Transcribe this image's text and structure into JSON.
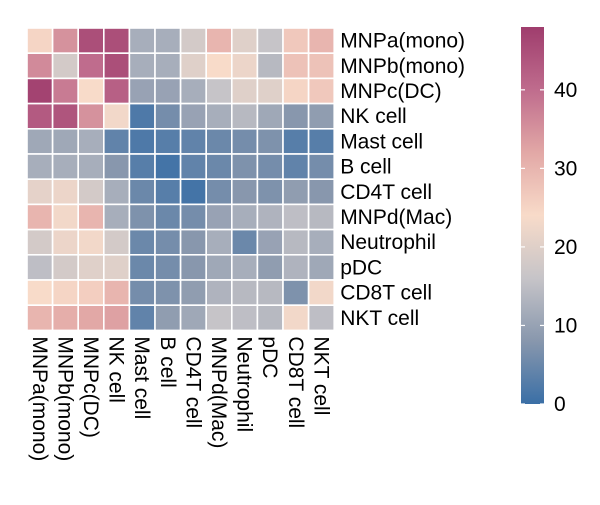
{
  "chart_data": {
    "type": "heatmap",
    "title": "",
    "xlabel": "",
    "ylabel": "",
    "rows": [
      "MNPa(mono)",
      "MNPb(mono)",
      "MNPc(DC)",
      "NK cell",
      "Mast cell",
      "B cell",
      "CD4T cell",
      "MNPd(Mac)",
      "Neutrophil",
      "pDC",
      "CD8T cell",
      "NKT cell"
    ],
    "columns": [
      "MNPa(mono)",
      "MNPb(mono)",
      "MNPc(DC)",
      "NK cell",
      "Mast cell",
      "B cell",
      "CD4T cell",
      "MNPd(Mac)",
      "Neutrophil",
      "pDC",
      "CD8T cell",
      "NKT cell"
    ],
    "values": [
      [
        25,
        35,
        45,
        45,
        12,
        12,
        18,
        30,
        20,
        16,
        27,
        30
      ],
      [
        36,
        18,
        40,
        45,
        12,
        12,
        20,
        24,
        22,
        14,
        28,
        28
      ],
      [
        47,
        38,
        24,
        42,
        10,
        10,
        12,
        16,
        20,
        20,
        25,
        27
      ],
      [
        43,
        44,
        35,
        23,
        2,
        6,
        10,
        12,
        14,
        11,
        8,
        9
      ],
      [
        11,
        11,
        12,
        4,
        2,
        3,
        4,
        5,
        6,
        7,
        3,
        3
      ],
      [
        12,
        12,
        12,
        8,
        3,
        1,
        4,
        5,
        7,
        6,
        4,
        6
      ],
      [
        21,
        22,
        18,
        12,
        5,
        3,
        1,
        6,
        8,
        7,
        9,
        8
      ],
      [
        30,
        23,
        30,
        12,
        7,
        5,
        6,
        10,
        12,
        13,
        15,
        14
      ],
      [
        18,
        22,
        23,
        18,
        5,
        6,
        8,
        12,
        5,
        10,
        14,
        12
      ],
      [
        15,
        18,
        20,
        20,
        5,
        6,
        8,
        11,
        12,
        9,
        13,
        11
      ],
      [
        24,
        25,
        26,
        30,
        6,
        7,
        9,
        13,
        14,
        14,
        7,
        23
      ],
      [
        30,
        31,
        32,
        33,
        4,
        9,
        11,
        16,
        15,
        14,
        23,
        15
      ]
    ],
    "colorbar": {
      "ticks": [
        0,
        10,
        20,
        30,
        40
      ],
      "min": 0,
      "max": 48,
      "colors": [
        "#3a6fa6",
        "#8897ad",
        "#c6c4c8",
        "#f8dbc9",
        "#e2a8a6",
        "#bf6c8d",
        "#9f3d6d"
      ]
    },
    "grid_color": "#ffffff",
    "legend": "right"
  }
}
